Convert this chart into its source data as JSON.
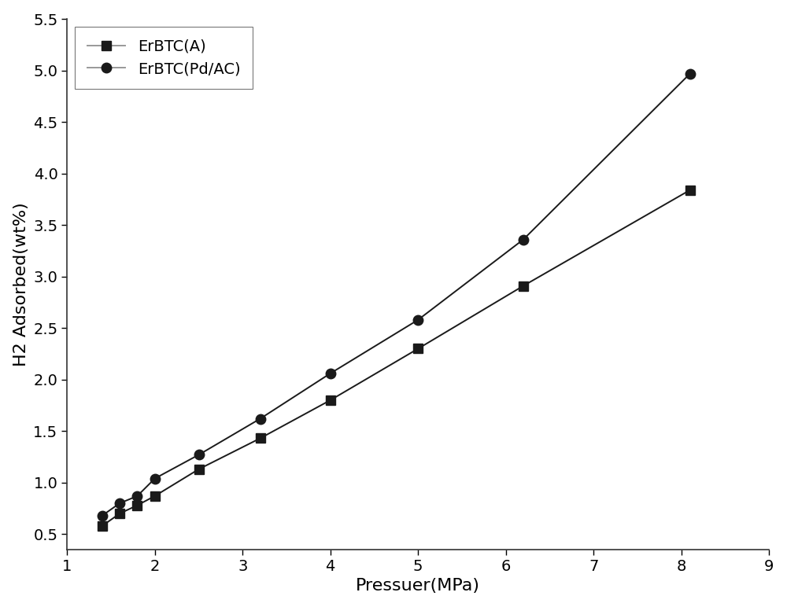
{
  "series": [
    {
      "label": "ErBTC(A)",
      "x": [
        1.4,
        1.6,
        1.8,
        2.0,
        2.5,
        3.2,
        4.0,
        5.0,
        6.2,
        8.1
      ],
      "y": [
        0.58,
        0.7,
        0.78,
        0.87,
        1.13,
        1.43,
        1.8,
        2.3,
        2.91,
        3.84
      ],
      "color": "#1a1a1a",
      "marker": "s",
      "markersize": 9,
      "linewidth": 1.4
    },
    {
      "label": "ErBTC(Pd/AC)",
      "x": [
        1.4,
        1.6,
        1.8,
        2.0,
        2.5,
        3.2,
        4.0,
        5.0,
        6.2,
        8.1
      ],
      "y": [
        0.68,
        0.8,
        0.87,
        1.04,
        1.27,
        1.62,
        2.06,
        2.58,
        3.36,
        4.97
      ],
      "color": "#1a1a1a",
      "marker": "o",
      "markersize": 9,
      "linewidth": 1.4
    }
  ],
  "xlabel": "Pressuer(MPa)",
  "ylabel": "H2 Adsorbed(wt%)",
  "xlim": [
    1.0,
    9.0
  ],
  "ylim": [
    0.35,
    5.5
  ],
  "xticks": [
    1,
    2,
    3,
    4,
    5,
    6,
    7,
    8,
    9
  ],
  "yticks": [
    0.5,
    1.0,
    1.5,
    2.0,
    2.5,
    3.0,
    3.5,
    4.0,
    4.5,
    5.0,
    5.5
  ],
  "legend_loc": "upper left",
  "legend_line_color": "#999999",
  "background_color": "#ffffff",
  "xlabel_fontsize": 16,
  "ylabel_fontsize": 16,
  "tick_fontsize": 14,
  "legend_fontsize": 14
}
